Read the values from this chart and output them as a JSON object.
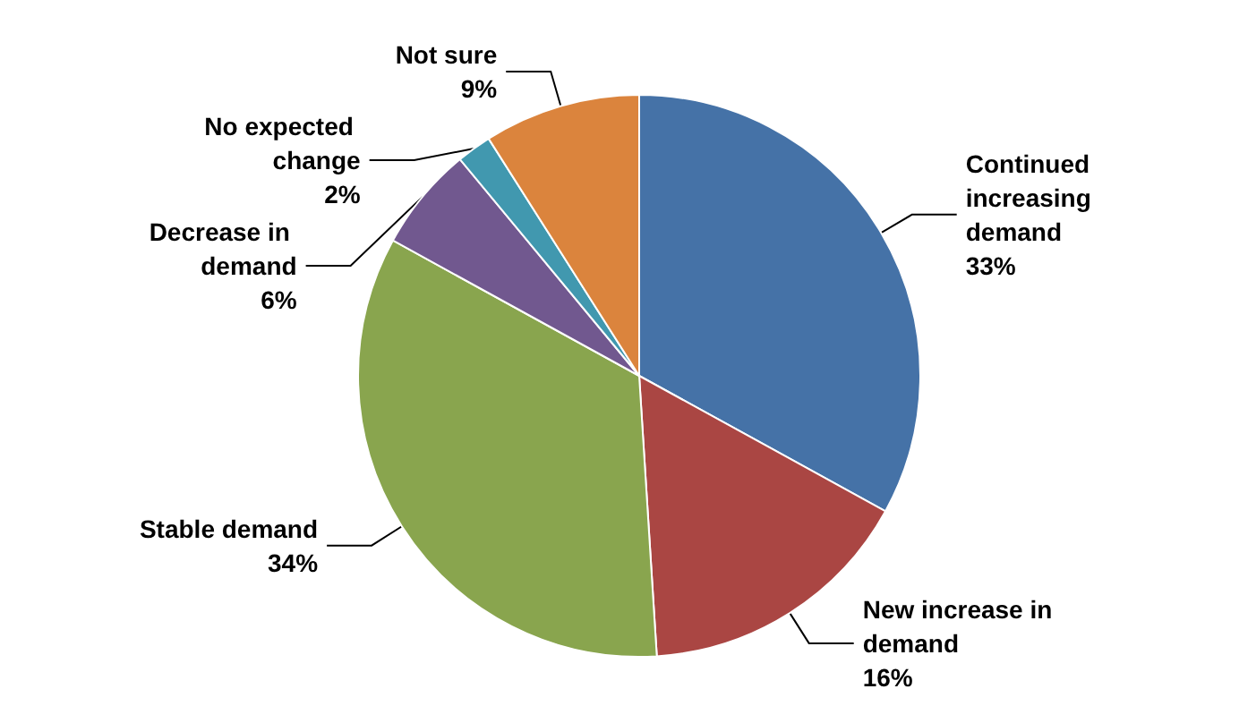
{
  "chart_data": {
    "type": "pie",
    "categories": [
      "Continued increasing demand",
      "New increase in demand",
      "Stable demand",
      "Decrease in demand",
      "No expected change",
      "Not sure"
    ],
    "values": [
      33,
      16,
      34,
      6,
      2,
      9
    ],
    "value_labels": [
      "33%",
      "16%",
      "34%",
      "6%",
      "2%",
      "9%"
    ],
    "colors": [
      "#4572a7",
      "#aa4643",
      "#89a54e",
      "#71588f",
      "#4198af",
      "#db843d"
    ],
    "legend": false
  }
}
